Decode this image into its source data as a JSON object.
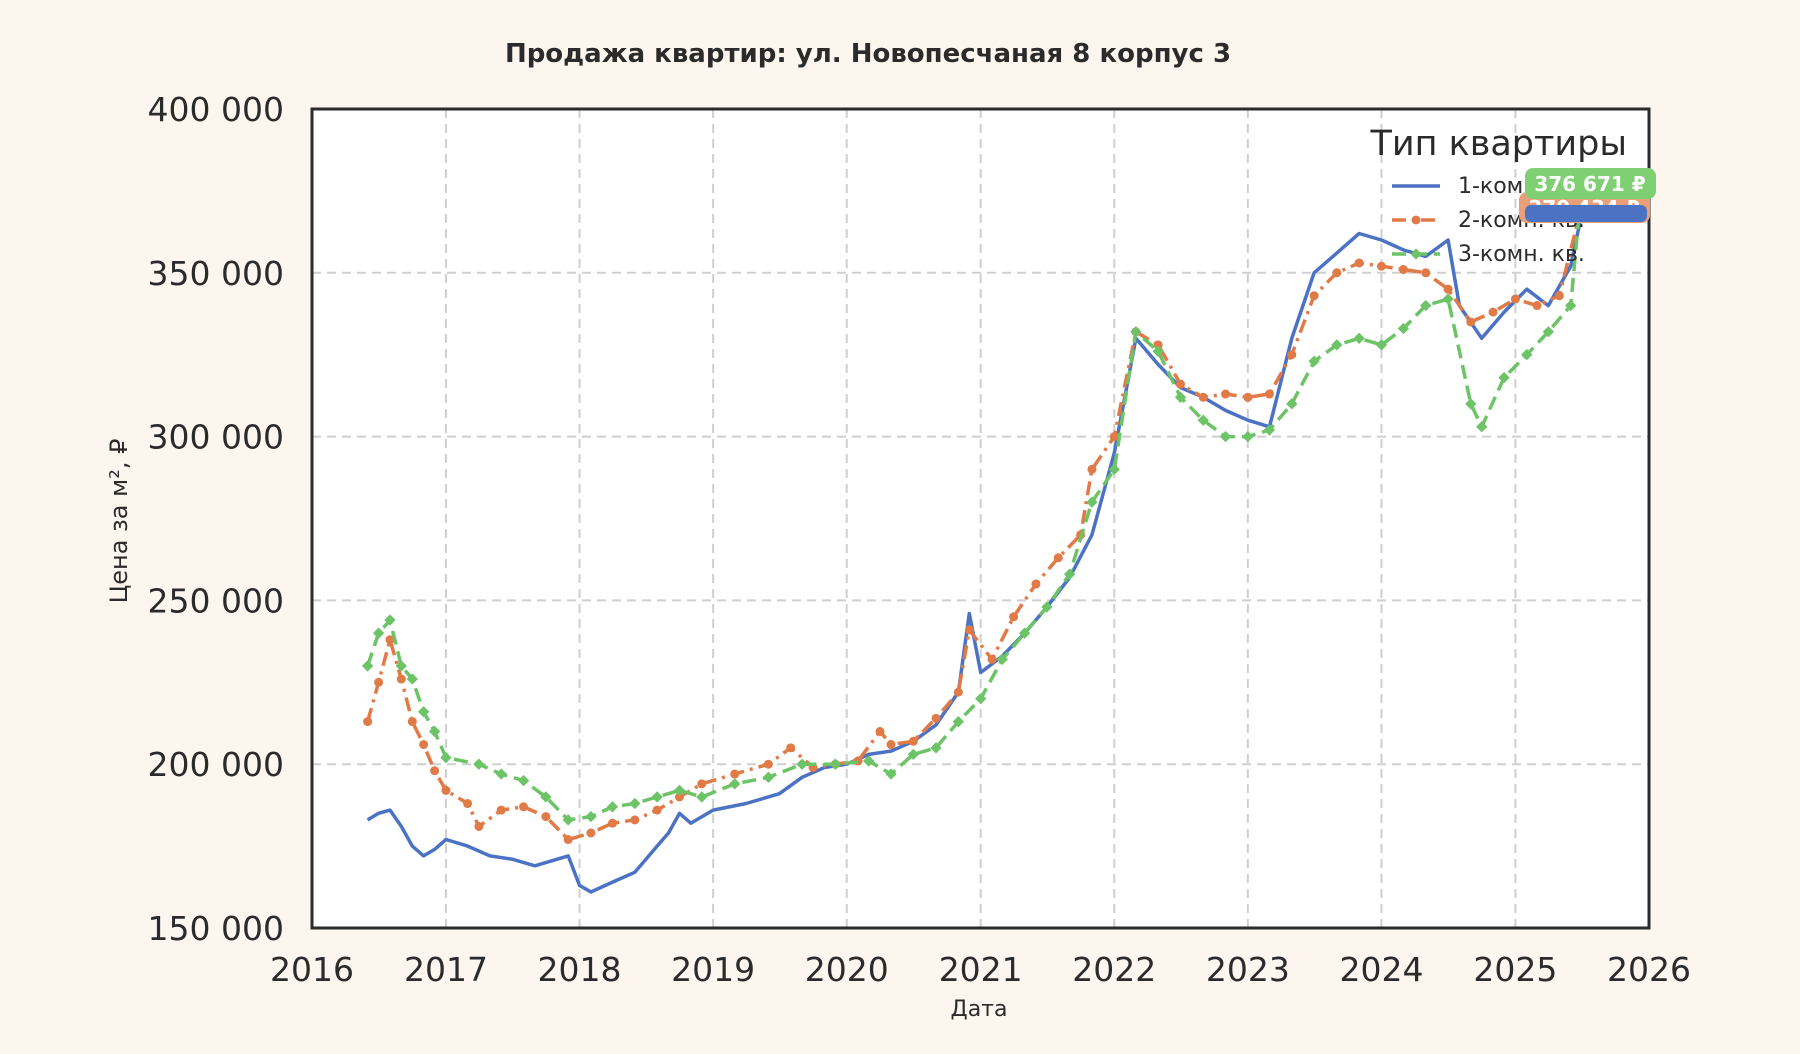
{
  "chart_data": {
    "type": "line",
    "title": "Продажа квартир: ул. Новопесчаная 8 корпус 3",
    "xlabel": "Дата",
    "ylabel": "Цена за м², ₽",
    "xlim": [
      "2016-01-01",
      "2026-01-01"
    ],
    "ylim": [
      150000,
      400000
    ],
    "x_ticks": [
      "2016",
      "2017",
      "2018",
      "2019",
      "2020",
      "2021",
      "2022",
      "2023",
      "2024",
      "2025",
      "2026"
    ],
    "y_ticks": [
      "150 000",
      "200 000",
      "250 000",
      "300 000",
      "350 000",
      "400 000"
    ],
    "grid": true,
    "legend": {
      "title": "Тип квартиры",
      "placement": "top-right",
      "entries": [
        "1-комн. кв.",
        "2-комн. кв.",
        "3-комн. кв."
      ]
    },
    "series": [
      {
        "name": "1-комн. кв.",
        "color": "#4c72c4",
        "style": "solid",
        "end_label": "",
        "points": [
          [
            "2016-06-01",
            183000
          ],
          [
            "2016-07-01",
            185000
          ],
          [
            "2016-08-01",
            186000
          ],
          [
            "2016-09-01",
            181000
          ],
          [
            "2016-10-01",
            175000
          ],
          [
            "2016-11-01",
            172000
          ],
          [
            "2016-12-01",
            174000
          ],
          [
            "2017-01-01",
            177000
          ],
          [
            "2017-03-01",
            175000
          ],
          [
            "2017-05-01",
            172000
          ],
          [
            "2017-07-01",
            171000
          ],
          [
            "2017-09-01",
            169000
          ],
          [
            "2017-11-01",
            171000
          ],
          [
            "2017-12-01",
            172000
          ],
          [
            "2018-01-01",
            163000
          ],
          [
            "2018-02-01",
            161000
          ],
          [
            "2018-04-01",
            164000
          ],
          [
            "2018-06-01",
            167000
          ],
          [
            "2018-08-01",
            175000
          ],
          [
            "2018-09-01",
            179000
          ],
          [
            "2018-10-01",
            185000
          ],
          [
            "2018-11-01",
            182000
          ],
          [
            "2019-01-01",
            186000
          ],
          [
            "2019-04-01",
            188000
          ],
          [
            "2019-07-01",
            191000
          ],
          [
            "2019-09-01",
            196000
          ],
          [
            "2019-11-01",
            199000
          ],
          [
            "2020-01-01",
            200000
          ],
          [
            "2020-03-01",
            203000
          ],
          [
            "2020-05-01",
            204000
          ],
          [
            "2020-07-01",
            207000
          ],
          [
            "2020-09-01",
            212000
          ],
          [
            "2020-11-01",
            222000
          ],
          [
            "2020-12-01",
            246000
          ],
          [
            "2021-01-01",
            228000
          ],
          [
            "2021-03-01",
            233000
          ],
          [
            "2021-05-01",
            240000
          ],
          [
            "2021-07-01",
            248000
          ],
          [
            "2021-09-01",
            257000
          ],
          [
            "2021-11-01",
            270000
          ],
          [
            "2022-01-01",
            295000
          ],
          [
            "2022-03-01",
            330000
          ],
          [
            "2022-05-01",
            322000
          ],
          [
            "2022-07-01",
            315000
          ],
          [
            "2022-09-01",
            312000
          ],
          [
            "2022-11-01",
            308000
          ],
          [
            "2023-01-01",
            305000
          ],
          [
            "2023-03-01",
            303000
          ],
          [
            "2023-05-01",
            330000
          ],
          [
            "2023-07-01",
            350000
          ],
          [
            "2023-09-01",
            356000
          ],
          [
            "2023-11-01",
            362000
          ],
          [
            "2024-01-01",
            360000
          ],
          [
            "2024-03-01",
            357000
          ],
          [
            "2024-05-01",
            355000
          ],
          [
            "2024-07-01",
            360000
          ],
          [
            "2024-08-01",
            340000
          ],
          [
            "2024-10-01",
            330000
          ],
          [
            "2024-12-01",
            338000
          ],
          [
            "2025-02-01",
            345000
          ],
          [
            "2025-04-01",
            340000
          ],
          [
            "2025-06-01",
            352000
          ],
          [
            "2025-07-01",
            368000
          ]
        ]
      },
      {
        "name": "2-комн. кв.",
        "color": "#e07b47",
        "style": "dashdot",
        "end_label": "370 434 ₽",
        "points": [
          [
            "2016-06-01",
            213000
          ],
          [
            "2016-07-01",
            225000
          ],
          [
            "2016-08-01",
            238000
          ],
          [
            "2016-09-01",
            226000
          ],
          [
            "2016-10-01",
            213000
          ],
          [
            "2016-11-01",
            206000
          ],
          [
            "2016-12-01",
            198000
          ],
          [
            "2017-01-01",
            192000
          ],
          [
            "2017-03-01",
            188000
          ],
          [
            "2017-04-01",
            181000
          ],
          [
            "2017-06-01",
            186000
          ],
          [
            "2017-08-01",
            187000
          ],
          [
            "2017-10-01",
            184000
          ],
          [
            "2017-12-01",
            177000
          ],
          [
            "2018-02-01",
            179000
          ],
          [
            "2018-04-01",
            182000
          ],
          [
            "2018-06-01",
            183000
          ],
          [
            "2018-08-01",
            186000
          ],
          [
            "2018-10-01",
            190000
          ],
          [
            "2018-12-01",
            194000
          ],
          [
            "2019-03-01",
            197000
          ],
          [
            "2019-06-01",
            200000
          ],
          [
            "2019-08-01",
            205000
          ],
          [
            "2019-10-01",
            199000
          ],
          [
            "2019-12-01",
            200000
          ],
          [
            "2020-02-01",
            201000
          ],
          [
            "2020-04-01",
            210000
          ],
          [
            "2020-05-01",
            206000
          ],
          [
            "2020-07-01",
            207000
          ],
          [
            "2020-09-01",
            214000
          ],
          [
            "2020-11-01",
            222000
          ],
          [
            "2020-12-01",
            241000
          ],
          [
            "2021-02-01",
            232000
          ],
          [
            "2021-04-01",
            245000
          ],
          [
            "2021-06-01",
            255000
          ],
          [
            "2021-08-01",
            263000
          ],
          [
            "2021-10-01",
            270000
          ],
          [
            "2021-11-01",
            290000
          ],
          [
            "2022-01-01",
            300000
          ],
          [
            "2022-03-01",
            332000
          ],
          [
            "2022-05-01",
            328000
          ],
          [
            "2022-07-01",
            316000
          ],
          [
            "2022-09-01",
            312000
          ],
          [
            "2022-11-01",
            313000
          ],
          [
            "2023-01-01",
            312000
          ],
          [
            "2023-03-01",
            313000
          ],
          [
            "2023-05-01",
            325000
          ],
          [
            "2023-07-01",
            343000
          ],
          [
            "2023-09-01",
            350000
          ],
          [
            "2023-11-01",
            353000
          ],
          [
            "2024-01-01",
            352000
          ],
          [
            "2024-03-01",
            351000
          ],
          [
            "2024-05-01",
            350000
          ],
          [
            "2024-07-01",
            345000
          ],
          [
            "2024-09-01",
            335000
          ],
          [
            "2024-11-01",
            338000
          ],
          [
            "2025-01-01",
            342000
          ],
          [
            "2025-03-01",
            340000
          ],
          [
            "2025-05-01",
            343000
          ],
          [
            "2025-07-01",
            370434
          ]
        ]
      },
      {
        "name": "3-комн. кв.",
        "color": "#6cc467",
        "style": "dashed",
        "end_label": "376 671 ₽",
        "points": [
          [
            "2016-06-01",
            230000
          ],
          [
            "2016-07-01",
            240000
          ],
          [
            "2016-08-01",
            244000
          ],
          [
            "2016-09-01",
            230000
          ],
          [
            "2016-10-01",
            226000
          ],
          [
            "2016-11-01",
            216000
          ],
          [
            "2016-12-01",
            210000
          ],
          [
            "2017-01-01",
            202000
          ],
          [
            "2017-04-01",
            200000
          ],
          [
            "2017-06-01",
            197000
          ],
          [
            "2017-08-01",
            195000
          ],
          [
            "2017-10-01",
            190000
          ],
          [
            "2017-12-01",
            183000
          ],
          [
            "2018-02-01",
            184000
          ],
          [
            "2018-04-01",
            187000
          ],
          [
            "2018-06-01",
            188000
          ],
          [
            "2018-08-01",
            190000
          ],
          [
            "2018-10-01",
            192000
          ],
          [
            "2018-12-01",
            190000
          ],
          [
            "2019-03-01",
            194000
          ],
          [
            "2019-06-01",
            196000
          ],
          [
            "2019-09-01",
            200000
          ],
          [
            "2019-12-01",
            200000
          ],
          [
            "2020-03-01",
            201000
          ],
          [
            "2020-05-01",
            197000
          ],
          [
            "2020-07-01",
            203000
          ],
          [
            "2020-09-01",
            205000
          ],
          [
            "2020-11-01",
            213000
          ],
          [
            "2021-01-01",
            220000
          ],
          [
            "2021-03-01",
            232000
          ],
          [
            "2021-05-01",
            240000
          ],
          [
            "2021-07-01",
            248000
          ],
          [
            "2021-09-01",
            258000
          ],
          [
            "2021-11-01",
            280000
          ],
          [
            "2022-01-01",
            290000
          ],
          [
            "2022-03-01",
            332000
          ],
          [
            "2022-05-01",
            326000
          ],
          [
            "2022-07-01",
            312000
          ],
          [
            "2022-09-01",
            305000
          ],
          [
            "2022-11-01",
            300000
          ],
          [
            "2023-01-01",
            300000
          ],
          [
            "2023-03-01",
            302000
          ],
          [
            "2023-05-01",
            310000
          ],
          [
            "2023-07-01",
            323000
          ],
          [
            "2023-09-01",
            328000
          ],
          [
            "2023-11-01",
            330000
          ],
          [
            "2024-01-01",
            328000
          ],
          [
            "2024-03-01",
            333000
          ],
          [
            "2024-05-01",
            340000
          ],
          [
            "2024-07-01",
            342000
          ],
          [
            "2024-09-01",
            310000
          ],
          [
            "2024-10-01",
            303000
          ],
          [
            "2024-12-01",
            318000
          ],
          [
            "2025-02-01",
            325000
          ],
          [
            "2025-04-01",
            332000
          ],
          [
            "2025-06-01",
            340000
          ],
          [
            "2025-07-01",
            376671
          ]
        ]
      }
    ]
  }
}
